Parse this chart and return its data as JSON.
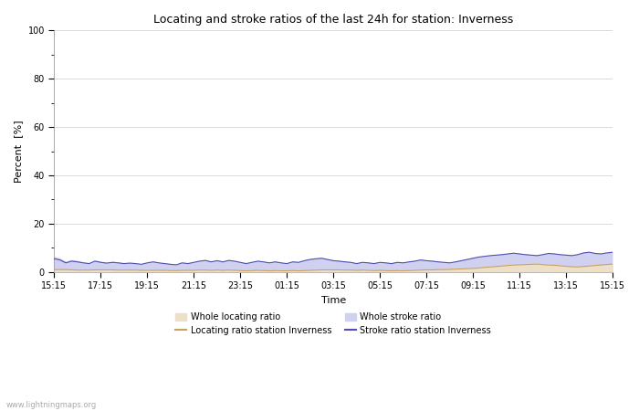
{
  "title": "Locating and stroke ratios of the last 24h for station: Inverness",
  "xlabel": "Time",
  "ylabel": "Percent  [%]",
  "xlim_labels": [
    "15:15",
    "17:15",
    "19:15",
    "21:15",
    "23:15",
    "01:15",
    "03:15",
    "05:15",
    "07:15",
    "09:15",
    "11:15",
    "13:15",
    "15:15"
  ],
  "ylim": [
    0,
    100
  ],
  "yticks": [
    0,
    20,
    40,
    60,
    80,
    100
  ],
  "ytick_minor": [
    10,
    30,
    50,
    70,
    90
  ],
  "background_color": "#ffffff",
  "plot_bg_color": "#ffffff",
  "grid_color": "#cccccc",
  "watermark": "www.lightningmaps.org",
  "whole_locating_color": "#ede0c8",
  "whole_stroke_color": "#d0d0f0",
  "locating_line_color": "#c8a060",
  "stroke_line_color": "#5050b0",
  "n_points": 97,
  "whole_locating_ratio": [
    1.2,
    1.1,
    1.0,
    1.2,
    1.1,
    1.0,
    0.9,
    1.1,
    1.0,
    1.0,
    1.1,
    1.0,
    0.9,
    1.0,
    0.9,
    0.8,
    1.0,
    0.9,
    0.8,
    0.9,
    0.8,
    0.7,
    0.9,
    0.8,
    0.9,
    1.0,
    0.9,
    0.8,
    0.9,
    0.8,
    0.9,
    0.8,
    0.7,
    0.6,
    0.7,
    0.8,
    0.7,
    0.6,
    0.7,
    0.6,
    0.5,
    0.7,
    0.6,
    0.7,
    0.8,
    0.9,
    1.0,
    1.1,
    1.2,
    1.1,
    1.0,
    0.9,
    0.8,
    0.9,
    0.8,
    0.7,
    0.8,
    0.7,
    0.6,
    0.7,
    0.6,
    0.7,
    0.8,
    0.9,
    1.0,
    1.1,
    1.2,
    1.3,
    1.4,
    1.5,
    1.6,
    1.8,
    2.0,
    2.2,
    2.4,
    2.6,
    2.8,
    3.0,
    3.2,
    3.4,
    3.5,
    3.6,
    3.7,
    3.8,
    3.6,
    3.4,
    3.2,
    3.0,
    2.8,
    2.6,
    2.5,
    2.7,
    2.9,
    3.1,
    3.3,
    3.5,
    3.7
  ],
  "whole_stroke_ratio": [
    6.5,
    5.8,
    4.5,
    5.2,
    4.8,
    4.2,
    3.8,
    5.0,
    4.5,
    4.0,
    4.5,
    4.2,
    3.8,
    4.0,
    3.7,
    3.5,
    4.0,
    4.5,
    4.0,
    3.8,
    3.5,
    3.2,
    4.0,
    3.8,
    4.2,
    4.8,
    5.2,
    4.5,
    5.0,
    4.5,
    5.2,
    4.8,
    4.2,
    3.8,
    4.2,
    4.8,
    4.5,
    4.0,
    4.5,
    4.0,
    3.8,
    4.5,
    4.2,
    5.0,
    5.5,
    5.8,
    6.0,
    5.5,
    5.0,
    4.8,
    4.5,
    4.2,
    3.8,
    4.2,
    4.0,
    3.8,
    4.2,
    4.0,
    3.8,
    4.2,
    4.0,
    4.5,
    4.8,
    5.2,
    5.0,
    4.8,
    4.5,
    4.2,
    4.0,
    4.5,
    5.0,
    5.5,
    6.0,
    6.5,
    6.8,
    7.0,
    7.2,
    7.5,
    7.8,
    8.0,
    7.8,
    7.5,
    7.2,
    7.0,
    7.5,
    8.0,
    7.8,
    7.5,
    7.2,
    7.0,
    7.5,
    8.2,
    8.5,
    8.0,
    7.8,
    8.2,
    8.5
  ],
  "locating_station_ratio": [
    1.0,
    1.0,
    1.0,
    0.9,
    0.8,
    0.8,
    0.8,
    0.9,
    0.9,
    0.9,
    0.9,
    0.8,
    0.8,
    0.8,
    0.8,
    0.7,
    0.7,
    0.7,
    0.7,
    0.7,
    0.6,
    0.6,
    0.7,
    0.7,
    0.7,
    0.8,
    0.8,
    0.7,
    0.8,
    0.7,
    0.8,
    0.7,
    0.6,
    0.5,
    0.6,
    0.7,
    0.6,
    0.5,
    0.6,
    0.5,
    0.5,
    0.6,
    0.5,
    0.6,
    0.7,
    0.8,
    0.9,
    0.9,
    0.9,
    0.9,
    0.8,
    0.8,
    0.7,
    0.8,
    0.7,
    0.6,
    0.7,
    0.6,
    0.5,
    0.6,
    0.5,
    0.6,
    0.7,
    0.8,
    0.9,
    0.9,
    1.0,
    1.0,
    1.1,
    1.2,
    1.3,
    1.4,
    1.5,
    1.7,
    1.9,
    2.1,
    2.3,
    2.5,
    2.7,
    2.9,
    3.0,
    3.1,
    3.2,
    3.3,
    3.1,
    2.9,
    2.8,
    2.6,
    2.4,
    2.2,
    2.1,
    2.3,
    2.5,
    2.7,
    2.9,
    3.1,
    3.3
  ],
  "stroke_station_ratio": [
    5.5,
    5.0,
    3.8,
    4.5,
    4.2,
    3.8,
    3.5,
    4.5,
    4.0,
    3.7,
    4.0,
    3.8,
    3.5,
    3.7,
    3.5,
    3.2,
    3.8,
    4.2,
    3.8,
    3.5,
    3.2,
    3.0,
    3.8,
    3.5,
    4.0,
    4.5,
    4.8,
    4.2,
    4.7,
    4.2,
    4.8,
    4.5,
    4.0,
    3.5,
    4.0,
    4.5,
    4.2,
    3.8,
    4.2,
    3.8,
    3.5,
    4.2,
    4.0,
    4.7,
    5.2,
    5.5,
    5.7,
    5.2,
    4.7,
    4.5,
    4.2,
    4.0,
    3.5,
    4.0,
    3.8,
    3.5,
    4.0,
    3.8,
    3.5,
    4.0,
    3.8,
    4.2,
    4.5,
    5.0,
    4.7,
    4.5,
    4.2,
    4.0,
    3.8,
    4.2,
    4.7,
    5.2,
    5.7,
    6.2,
    6.5,
    6.8,
    7.0,
    7.2,
    7.5,
    7.8,
    7.5,
    7.2,
    7.0,
    6.8,
    7.2,
    7.7,
    7.5,
    7.2,
    7.0,
    6.8,
    7.2,
    7.9,
    8.2,
    7.7,
    7.5,
    7.9,
    8.2
  ]
}
